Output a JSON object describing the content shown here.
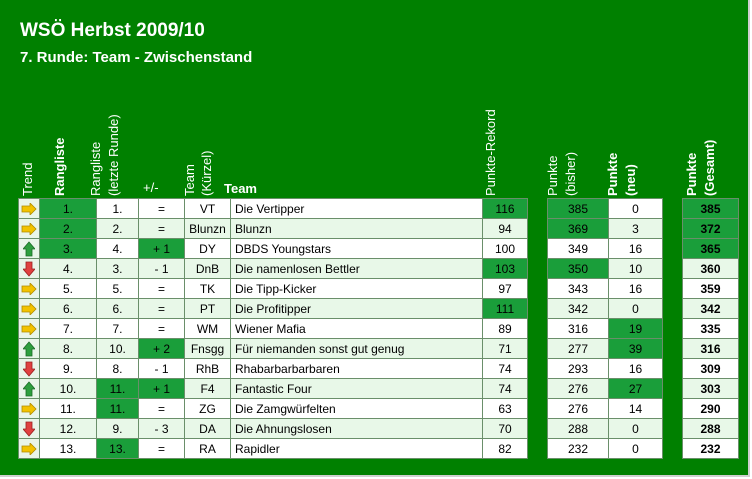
{
  "title": "WSÖ Herbst 2009/10",
  "subtitle": "7. Runde: Team - Zwischenstand",
  "headers": {
    "trend": "Trend",
    "rank": "Rangliste",
    "last_rank_1": "Rangliste",
    "last_rank_2": "(letzte Runde)",
    "diff": "+/-",
    "short_1": "Team",
    "short_2": "(Kürzel)",
    "team": "Team",
    "record": "Punkte-Rekord",
    "prev_1": "Punkte",
    "prev_2": "(bisher)",
    "new_1": "Punkte",
    "new_2": "(neu)",
    "total_1": "Punkte",
    "total_2": "(Gesamt)"
  },
  "colors": {
    "background": "#008000",
    "highlight": "#1a9e3a",
    "up": "#2e9e3e",
    "down": "#e04040",
    "same": "#f2c200"
  },
  "rows": [
    {
      "trend": "same",
      "rank": "1.",
      "last": "1.",
      "diff": "=",
      "short": "VT",
      "team": "Die Vertipper",
      "record": "116",
      "prev": "385",
      "new": "0",
      "total": "385"
    },
    {
      "trend": "same",
      "rank": "2.",
      "last": "2.",
      "diff": "=",
      "short": "Blunzn",
      "team": "Blunzn",
      "record": "94",
      "prev": "369",
      "new": "3",
      "total": "372"
    },
    {
      "trend": "up",
      "rank": "3.",
      "last": "4.",
      "diff": "+ 1",
      "short": "DY",
      "team": "DBDS Youngstars",
      "record": "100",
      "prev": "349",
      "new": "16",
      "total": "365"
    },
    {
      "trend": "down",
      "rank": "4.",
      "last": "3.",
      "diff": "- 1",
      "short": "DnB",
      "team": "Die namenlosen Bettler",
      "record": "103",
      "prev": "350",
      "new": "10",
      "total": "360"
    },
    {
      "trend": "same",
      "rank": "5.",
      "last": "5.",
      "diff": "=",
      "short": "TK",
      "team": "Die Tipp-Kicker",
      "record": "97",
      "prev": "343",
      "new": "16",
      "total": "359"
    },
    {
      "trend": "same",
      "rank": "6.",
      "last": "6.",
      "diff": "=",
      "short": "PT",
      "team": "Die Profitipper",
      "record": "111",
      "prev": "342",
      "new": "0",
      "total": "342"
    },
    {
      "trend": "same",
      "rank": "7.",
      "last": "7.",
      "diff": "=",
      "short": "WM",
      "team": "Wiener Mafia",
      "record": "89",
      "prev": "316",
      "new": "19",
      "total": "335"
    },
    {
      "trend": "up",
      "rank": "8.",
      "last": "10.",
      "diff": "+ 2",
      "short": "Fnsgg",
      "team": "Für niemanden sonst gut genug",
      "record": "71",
      "prev": "277",
      "new": "39",
      "total": "316"
    },
    {
      "trend": "down",
      "rank": "9.",
      "last": "8.",
      "diff": "- 1",
      "short": "RhB",
      "team": "Rhabarbarbarbaren",
      "record": "74",
      "prev": "293",
      "new": "16",
      "total": "309"
    },
    {
      "trend": "up",
      "rank": "10.",
      "last": "11.",
      "diff": "+ 1",
      "short": "F4",
      "team": "Fantastic Four",
      "record": "74",
      "prev": "276",
      "new": "27",
      "total": "303"
    },
    {
      "trend": "same",
      "rank": "11.",
      "last": "11.",
      "diff": "=",
      "short": "ZG",
      "team": "Die Zamgwürfelten",
      "record": "63",
      "prev": "276",
      "new": "14",
      "total": "290"
    },
    {
      "trend": "down",
      "rank": "12.",
      "last": "9.",
      "diff": "- 3",
      "short": "DA",
      "team": "Die Ahnungslosen",
      "record": "70",
      "prev": "288",
      "new": "0",
      "total": "288"
    },
    {
      "trend": "same",
      "rank": "13.",
      "last": "13.",
      "diff": "=",
      "short": "RA",
      "team": "Rapidler",
      "record": "82",
      "prev": "232",
      "new": "0",
      "total": "232"
    }
  ]
}
